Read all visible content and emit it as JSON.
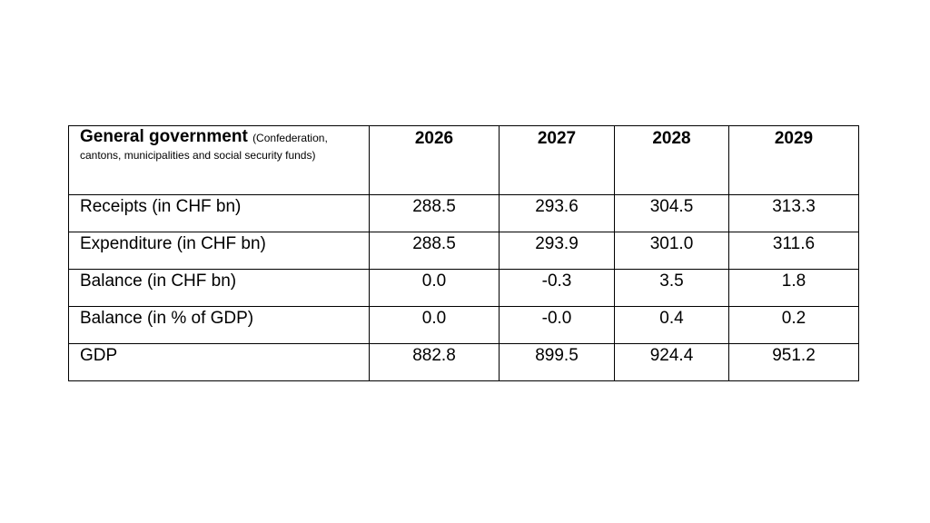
{
  "table": {
    "header": {
      "label_main": "General government",
      "label_sub": "(Confederation, cantons, municipalities and social security funds)",
      "years": [
        "2026",
        "2027",
        "2028",
        "2029"
      ]
    },
    "rows": [
      {
        "label": "Receipts (in CHF bn)",
        "values": [
          "288.5",
          "293.6",
          "304.5",
          "313.3"
        ]
      },
      {
        "label": "Expenditure (in CHF bn)",
        "values": [
          "288.5",
          "293.9",
          "301.0",
          "311.6"
        ]
      },
      {
        "label": "Balance (in CHF bn)",
        "values": [
          "0.0",
          "-0.3",
          "3.5",
          "1.8"
        ]
      },
      {
        "label": "Balance (in % of GDP)",
        "values": [
          "0.0",
          "-0.0",
          "0.4",
          "0.2"
        ]
      },
      {
        "label": "GDP",
        "values": [
          "882.8",
          "899.5",
          "924.4",
          "951.2"
        ]
      }
    ]
  }
}
